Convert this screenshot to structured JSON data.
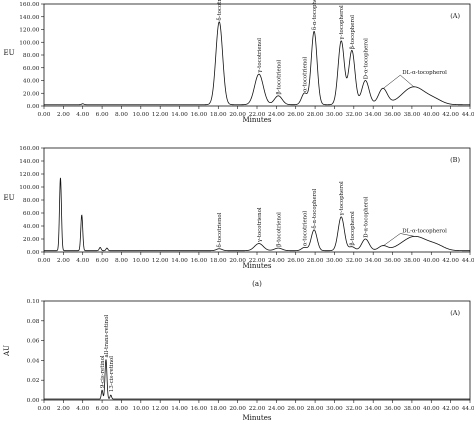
{
  "chart_data": [
    {
      "type": "line",
      "panel": "(A)",
      "ylabel": "EU",
      "xlabel": "Minutes",
      "xlim": [
        0,
        44
      ],
      "ylim": [
        0,
        160
      ],
      "xticks": [
        "0.00",
        "2.00",
        "4.00",
        "6.00",
        "8.00",
        "10.00",
        "12.00",
        "14.00",
        "16.00",
        "18.00",
        "20.00",
        "22.00",
        "24.00",
        "26.00",
        "28.00",
        "30.00",
        "32.00",
        "34.00",
        "36.00",
        "38.00",
        "40.00",
        "42.00",
        "44.00"
      ],
      "yticks": [
        "0.00",
        "20.00",
        "40.00",
        "60.00",
        "80.00",
        "100.00",
        "120.00",
        "140.00",
        "160.00"
      ],
      "baseline": 2,
      "peaks": [
        {
          "x": 4.0,
          "h": 1.5,
          "w": 0.12
        },
        {
          "x": 18.1,
          "h": 130,
          "w": 0.35
        },
        {
          "x": 22.2,
          "h": 48,
          "w": 0.45
        },
        {
          "x": 24.2,
          "h": 14,
          "w": 0.4
        },
        {
          "x": 26.9,
          "h": 18,
          "w": 0.3
        },
        {
          "x": 27.9,
          "h": 115,
          "w": 0.3
        },
        {
          "x": 30.7,
          "h": 100,
          "w": 0.32
        },
        {
          "x": 31.8,
          "h": 85,
          "w": 0.32
        },
        {
          "x": 33.2,
          "h": 38,
          "w": 0.38
        },
        {
          "x": 35.0,
          "h": 25,
          "w": 0.45
        },
        {
          "x": 38.2,
          "h": 28,
          "w": 1.2
        },
        {
          "x": 40.4,
          "h": 6,
          "w": 0.8
        }
      ],
      "annotations": [
        {
          "text": "δ-tocotrienol",
          "x": 18.1,
          "y": 134
        },
        {
          "text": "γ-tocotrienol",
          "x": 22.2,
          "y": 52
        },
        {
          "text": "β-tocotrienol",
          "x": 24.2,
          "y": 18
        },
        {
          "text": "α-tocotrienol",
          "x": 26.9,
          "y": 22
        },
        {
          "text": "δ-α-tocopherol",
          "x": 27.9,
          "y": 119
        },
        {
          "text": "γ-tocopherol",
          "x": 30.7,
          "y": 104
        },
        {
          "text": "β-tocopherol",
          "x": 31.8,
          "y": 89
        },
        {
          "text": "D-α-tocopherol",
          "x": 33.2,
          "y": 42
        }
      ],
      "callout": {
        "text": "DL-α-tocopherol",
        "x": 36.8,
        "y": 50,
        "targets": [
          [
            35.0,
            27
          ],
          [
            38.2,
            30
          ]
        ]
      }
    },
    {
      "type": "line",
      "panel": "(B)",
      "ylabel": "EU",
      "xlabel": "Minutes",
      "xlim": [
        0,
        44
      ],
      "ylim": [
        0,
        160
      ],
      "xticks": [
        "0.00",
        "2.00",
        "4.00",
        "6.00",
        "8.00",
        "10.00",
        "12.00",
        "14.00",
        "16.00",
        "18.00",
        "20.00",
        "22.00",
        "24.00",
        "26.00",
        "28.00",
        "30.00",
        "32.00",
        "34.00",
        "36.00",
        "38.00",
        "40.00",
        "42.00",
        "44.00"
      ],
      "yticks": [
        "0.00",
        "20.00",
        "40.00",
        "60.00",
        "80.00",
        "100.00",
        "120.00",
        "140.00",
        "160.00"
      ],
      "baseline": 2,
      "peaks": [
        {
          "x": 1.7,
          "h": 112,
          "w": 0.1
        },
        {
          "x": 3.9,
          "h": 55,
          "w": 0.1
        },
        {
          "x": 5.8,
          "h": 5,
          "w": 0.1
        },
        {
          "x": 6.5,
          "h": 4,
          "w": 0.1
        },
        {
          "x": 18.1,
          "h": 3,
          "w": 0.3
        },
        {
          "x": 22.2,
          "h": 11,
          "w": 0.45
        },
        {
          "x": 24.2,
          "h": 4,
          "w": 0.4
        },
        {
          "x": 26.9,
          "h": 5,
          "w": 0.3
        },
        {
          "x": 27.9,
          "h": 32,
          "w": 0.3
        },
        {
          "x": 30.7,
          "h": 52,
          "w": 0.32
        },
        {
          "x": 31.8,
          "h": 6,
          "w": 0.32
        },
        {
          "x": 33.2,
          "h": 18,
          "w": 0.38
        },
        {
          "x": 35.0,
          "h": 7,
          "w": 0.45
        },
        {
          "x": 38.3,
          "h": 22,
          "w": 1.3
        },
        {
          "x": 40.6,
          "h": 6,
          "w": 0.8
        }
      ],
      "annotations": [
        {
          "text": "δ-tocotrienol",
          "x": 18.1,
          "y": 7
        },
        {
          "text": "γ-tocotrienol",
          "x": 22.2,
          "y": 15
        },
        {
          "text": "β-tocotrienol",
          "x": 24.2,
          "y": 8
        },
        {
          "text": "α-tocotrienol",
          "x": 26.9,
          "y": 9
        },
        {
          "text": "δ-α-tocopherol",
          "x": 27.9,
          "y": 36
        },
        {
          "text": "γ-tocopherol",
          "x": 30.7,
          "y": 56
        },
        {
          "text": "β-tocopherol",
          "x": 31.8,
          "y": 10
        },
        {
          "text": "D-α-tocopherol",
          "x": 33.2,
          "y": 22
        }
      ],
      "callout": {
        "text": "DL-α-tocopherol",
        "x": 36.8,
        "y": 30,
        "targets": [
          [
            35.0,
            9
          ],
          [
            38.3,
            24
          ]
        ]
      }
    },
    {
      "type": "line",
      "panel": "(A)",
      "ylabel": "AU",
      "xlabel": "Minutes",
      "xlim": [
        0,
        44
      ],
      "ylim": [
        0,
        0.1
      ],
      "xticks": [
        "0.00",
        "2.00",
        "4.00",
        "6.00",
        "8.00",
        "10.00",
        "12.00",
        "14.00",
        "16.00",
        "18.00",
        "20.00",
        "22.00",
        "24.00",
        "26.00",
        "28.00",
        "30.00",
        "32.00",
        "34.00",
        "36.00",
        "38.00",
        "40.00",
        "42.00",
        "44.00"
      ],
      "yticks": [
        "0.00",
        "0.02",
        "0.04",
        "0.06",
        "0.08",
        "0.10"
      ],
      "baseline": 0.001,
      "peaks": [
        {
          "x": 6.0,
          "h": 0.009,
          "w": 0.08
        },
        {
          "x": 6.4,
          "h": 0.04,
          "w": 0.1
        },
        {
          "x": 6.9,
          "h": 0.004,
          "w": 0.08
        }
      ],
      "annotations": [
        {
          "text": "9-cis-retinol",
          "x": 6.0,
          "y": 0.012
        },
        {
          "text": "all-trans-retinol",
          "x": 6.4,
          "y": 0.043
        },
        {
          "text": "13-cis-retinol",
          "x": 6.9,
          "y": 0.008
        }
      ]
    }
  ],
  "caption_a": "(a)"
}
